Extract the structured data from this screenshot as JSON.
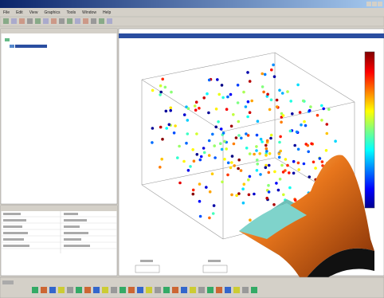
{
  "window": {
    "menu": [
      "File",
      "Edit",
      "View",
      "Graphics",
      "Tools",
      "Window",
      "Help"
    ]
  }
}
